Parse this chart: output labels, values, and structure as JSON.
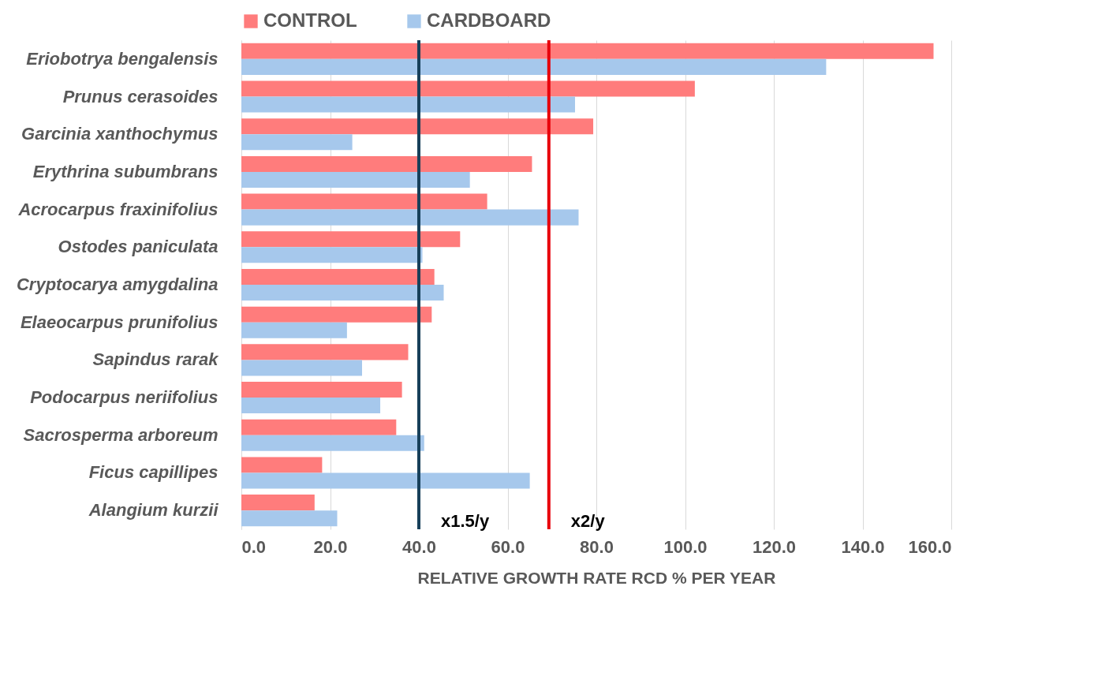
{
  "chart_data": {
    "type": "bar",
    "orientation": "horizontal",
    "xlabel": "RELATIVE GROWTH RATE RCD % PER YEAR",
    "categories": [
      "Eriobotrya bengalensis",
      "Prunus cerasoides",
      "Garcinia xanthochymus",
      "Erythrina subumbrans",
      "Acrocarpus fraxinifolius",
      "Ostodes paniculata",
      "Cryptocarya amygdalina",
      "Elaeocarpus prunifolius",
      "Sapindus rarak",
      "Podocarpus neriifolius",
      "Sacrosperma arboreum",
      "Ficus capillipes",
      "Alangium kurzii"
    ],
    "series": [
      {
        "name": "CONTROL",
        "color": "#ff7c7c",
        "values": [
          156,
          102.2,
          79.3,
          65.5,
          55.4,
          49.3,
          43.5,
          42.9,
          37.6,
          36.2,
          34.9,
          18.2,
          16.5
        ]
      },
      {
        "name": "CARDBOARD",
        "color": "#a6c8ec",
        "values": [
          131.8,
          75.2,
          25,
          51.5,
          76,
          40.8,
          45.6,
          23.8,
          27.2,
          31.3,
          41.2,
          65,
          21.6
        ]
      }
    ],
    "xlim": [
      0,
      160
    ],
    "xticks": [
      {
        "value": 0,
        "label": "0.0"
      },
      {
        "value": 20,
        "label": "20.0"
      },
      {
        "value": 40,
        "label": "40.0"
      },
      {
        "value": 60,
        "label": "60.0"
      },
      {
        "value": 80,
        "label": "80.0"
      },
      {
        "value": 100,
        "label": "100.0"
      },
      {
        "value": 120,
        "label": "120.0"
      },
      {
        "value": 140,
        "label": "140.0"
      },
      {
        "value": 160,
        "label": "160.0"
      }
    ],
    "ref_lines": [
      {
        "axis": "x",
        "value": 40,
        "label": "x1.5/y",
        "color": "#17405a"
      },
      {
        "axis": "x",
        "value": 69.3,
        "label": "x2/y",
        "color": "#e8000b"
      }
    ],
    "grid": "x",
    "legend": "top"
  }
}
